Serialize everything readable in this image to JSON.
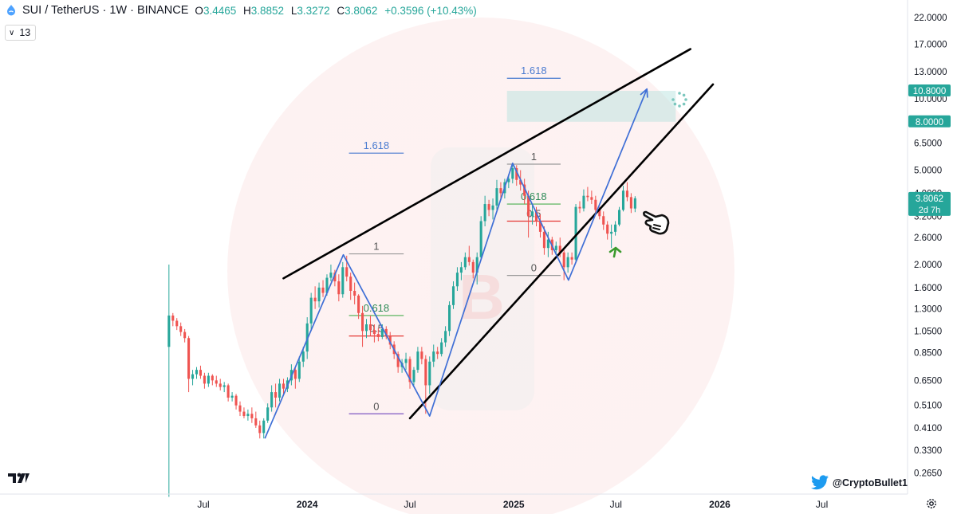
{
  "header": {
    "symbol": "SUI / TetherUS · 1W · BINANCE",
    "open_key": "O",
    "open": "3.4465",
    "high_key": "H",
    "high": "3.8852",
    "low_key": "L",
    "low": "3.3272",
    "close_key": "C",
    "close": "3.8062",
    "change": "+0.3596 (+10.43%)"
  },
  "indicator_badge": "13",
  "watermark_handle": "@CryptoBullet1",
  "colors": {
    "up": "#26a69a",
    "down": "#ef5350",
    "trend_lines": "#000000",
    "zigzag": "#3f6fd6",
    "fib_label": "#4a7bd0",
    "target_zone": "#b2dfdb",
    "price_badge": "#26a69a",
    "arrow_green": "#3a9a2d"
  },
  "chart_data": {
    "type": "candlestick",
    "scale": "log",
    "y_axis_ticks": [
      "22.0000",
      "17.0000",
      "13.0000",
      "10.0000",
      "6.5000",
      "5.0000",
      "4.0000",
      "3.2000",
      "2.6000",
      "2.0000",
      "1.6000",
      "1.3000",
      "1.0500",
      "0.8500",
      "0.6500",
      "0.5100",
      "0.4100",
      "0.3300",
      "0.2650"
    ],
    "x_axis_labels": [
      "Jul",
      "2024",
      "Jul",
      "2025",
      "Jul",
      "2026",
      "Jul"
    ],
    "price_badges": [
      {
        "label": "10.8000",
        "value": 10.8
      },
      {
        "label": "8.0000",
        "value": 8.0
      },
      {
        "label": "3.8062",
        "value": 3.8062,
        "sub": "2d 7h"
      }
    ],
    "target_zone": {
      "from_date": "2024-12-20",
      "to_date": "2025-10-15",
      "low": 8.0,
      "high": 10.8
    },
    "fib_levels": [
      {
        "label": "1",
        "value": 2.22,
        "from": "2024-03-15",
        "to": "2024-06-20",
        "style": "grey"
      },
      {
        "label": "0.618",
        "value": 1.22,
        "from": "2024-03-15",
        "to": "2024-06-20",
        "style": "green"
      },
      {
        "label": "0.5",
        "value": 1.0,
        "from": "2024-03-15",
        "to": "2024-06-20",
        "style": "red"
      },
      {
        "label": "0",
        "value": 0.47,
        "from": "2024-03-15",
        "to": "2024-06-20",
        "style": "purple"
      },
      {
        "label": "1.618",
        "value": 5.9,
        "from": "2024-03-15",
        "to": "2024-06-20",
        "style": "blue"
      },
      {
        "label": "1",
        "value": 5.3,
        "from": "2024-12-20",
        "to": "2025-03-25",
        "style": "grey"
      },
      {
        "label": "0.618",
        "value": 3.6,
        "from": "2024-12-20",
        "to": "2025-03-25",
        "style": "green"
      },
      {
        "label": "0.5",
        "value": 3.05,
        "from": "2024-12-20",
        "to": "2025-03-25",
        "style": "red"
      },
      {
        "label": "0",
        "value": 1.8,
        "from": "2024-12-20",
        "to": "2025-03-25",
        "style": "grey"
      },
      {
        "label": "1.618",
        "value": 12.2,
        "from": "2024-12-20",
        "to": "2025-03-25",
        "style": "blue"
      }
    ],
    "trend_lines": [
      {
        "from": [
          "2023-11-20",
          1.75
        ],
        "to": [
          "2025-11-10",
          16.2
        ]
      },
      {
        "from": [
          "2024-07-01",
          0.45
        ],
        "to": [
          "2025-12-20",
          11.5
        ]
      }
    ],
    "zigzag": [
      [
        "2023-10-18",
        0.37
      ],
      [
        "2024-03-05",
        2.2
      ],
      [
        "2024-08-05",
        0.46
      ],
      [
        "2024-12-30",
        5.35
      ],
      [
        "2025-04-08",
        1.72
      ],
      [
        "2025-08-25",
        11.0
      ]
    ],
    "candles": [
      {
        "date": "2023-05-01",
        "o": 0.9,
        "h": 2.0,
        "l": 0.21,
        "c": 1.22
      },
      {
        "date": "2023-05-08",
        "o": 1.22,
        "h": 1.25,
        "l": 1.1,
        "c": 1.16
      },
      {
        "date": "2023-05-15",
        "o": 1.16,
        "h": 1.19,
        "l": 1.06,
        "c": 1.1
      },
      {
        "date": "2023-05-22",
        "o": 1.1,
        "h": 1.14,
        "l": 1.0,
        "c": 1.04
      },
      {
        "date": "2023-05-29",
        "o": 1.04,
        "h": 1.07,
        "l": 0.94,
        "c": 0.98
      },
      {
        "date": "2023-06-05",
        "o": 0.98,
        "h": 1.0,
        "l": 0.58,
        "c": 0.66
      },
      {
        "date": "2023-06-12",
        "o": 0.66,
        "h": 0.72,
        "l": 0.62,
        "c": 0.69
      },
      {
        "date": "2023-06-19",
        "o": 0.69,
        "h": 0.74,
        "l": 0.66,
        "c": 0.72
      },
      {
        "date": "2023-06-26",
        "o": 0.72,
        "h": 0.75,
        "l": 0.66,
        "c": 0.68
      },
      {
        "date": "2023-07-03",
        "o": 0.68,
        "h": 0.7,
        "l": 0.6,
        "c": 0.63
      },
      {
        "date": "2023-07-10",
        "o": 0.63,
        "h": 0.7,
        "l": 0.61,
        "c": 0.68
      },
      {
        "date": "2023-07-17",
        "o": 0.68,
        "h": 0.69,
        "l": 0.62,
        "c": 0.65
      },
      {
        "date": "2023-07-24",
        "o": 0.65,
        "h": 0.68,
        "l": 0.61,
        "c": 0.63
      },
      {
        "date": "2023-07-31",
        "o": 0.63,
        "h": 0.66,
        "l": 0.59,
        "c": 0.61
      },
      {
        "date": "2023-08-07",
        "o": 0.61,
        "h": 0.64,
        "l": 0.58,
        "c": 0.62
      },
      {
        "date": "2023-08-14",
        "o": 0.62,
        "h": 0.63,
        "l": 0.53,
        "c": 0.55
      },
      {
        "date": "2023-08-21",
        "o": 0.55,
        "h": 0.58,
        "l": 0.53,
        "c": 0.56
      },
      {
        "date": "2023-08-28",
        "o": 0.56,
        "h": 0.57,
        "l": 0.49,
        "c": 0.51
      },
      {
        "date": "2023-09-04",
        "o": 0.51,
        "h": 0.53,
        "l": 0.46,
        "c": 0.48
      },
      {
        "date": "2023-09-11",
        "o": 0.48,
        "h": 0.5,
        "l": 0.45,
        "c": 0.46
      },
      {
        "date": "2023-09-18",
        "o": 0.46,
        "h": 0.49,
        "l": 0.44,
        "c": 0.47
      },
      {
        "date": "2023-09-25",
        "o": 0.47,
        "h": 0.5,
        "l": 0.43,
        "c": 0.45
      },
      {
        "date": "2023-10-02",
        "o": 0.45,
        "h": 0.48,
        "l": 0.41,
        "c": 0.42
      },
      {
        "date": "2023-10-09",
        "o": 0.42,
        "h": 0.44,
        "l": 0.37,
        "c": 0.39
      },
      {
        "date": "2023-10-16",
        "o": 0.39,
        "h": 0.45,
        "l": 0.37,
        "c": 0.44
      },
      {
        "date": "2023-10-23",
        "o": 0.44,
        "h": 0.52,
        "l": 0.43,
        "c": 0.5
      },
      {
        "date": "2023-10-30",
        "o": 0.5,
        "h": 0.62,
        "l": 0.48,
        "c": 0.58
      },
      {
        "date": "2023-11-06",
        "o": 0.58,
        "h": 0.63,
        "l": 0.5,
        "c": 0.55
      },
      {
        "date": "2023-11-13",
        "o": 0.55,
        "h": 0.66,
        "l": 0.53,
        "c": 0.63
      },
      {
        "date": "2023-11-20",
        "o": 0.63,
        "h": 0.66,
        "l": 0.56,
        "c": 0.6
      },
      {
        "date": "2023-11-27",
        "o": 0.6,
        "h": 0.67,
        "l": 0.58,
        "c": 0.65
      },
      {
        "date": "2023-12-04",
        "o": 0.65,
        "h": 0.76,
        "l": 0.62,
        "c": 0.72
      },
      {
        "date": "2023-12-11",
        "o": 0.72,
        "h": 0.74,
        "l": 0.6,
        "c": 0.66
      },
      {
        "date": "2023-12-18",
        "o": 0.66,
        "h": 0.82,
        "l": 0.64,
        "c": 0.78
      },
      {
        "date": "2023-12-25",
        "o": 0.78,
        "h": 0.9,
        "l": 0.74,
        "c": 0.86
      },
      {
        "date": "2024-01-01",
        "o": 0.86,
        "h": 1.2,
        "l": 0.8,
        "c": 1.13
      },
      {
        "date": "2024-01-08",
        "o": 1.13,
        "h": 1.52,
        "l": 1.05,
        "c": 1.45
      },
      {
        "date": "2024-01-15",
        "o": 1.45,
        "h": 1.62,
        "l": 1.3,
        "c": 1.4
      },
      {
        "date": "2024-01-22",
        "o": 1.4,
        "h": 1.68,
        "l": 1.32,
        "c": 1.6
      },
      {
        "date": "2024-01-29",
        "o": 1.6,
        "h": 1.72,
        "l": 1.46,
        "c": 1.52
      },
      {
        "date": "2024-02-05",
        "o": 1.52,
        "h": 1.82,
        "l": 1.48,
        "c": 1.76
      },
      {
        "date": "2024-02-12",
        "o": 1.76,
        "h": 2.0,
        "l": 1.7,
        "c": 1.85
      },
      {
        "date": "2024-02-19",
        "o": 1.85,
        "h": 1.9,
        "l": 1.62,
        "c": 1.7
      },
      {
        "date": "2024-02-26",
        "o": 1.7,
        "h": 1.82,
        "l": 1.4,
        "c": 1.5
      },
      {
        "date": "2024-03-04",
        "o": 1.5,
        "h": 2.05,
        "l": 1.45,
        "c": 1.95
      },
      {
        "date": "2024-03-11",
        "o": 1.95,
        "h": 2.18,
        "l": 1.7,
        "c": 1.78
      },
      {
        "date": "2024-03-18",
        "o": 1.78,
        "h": 1.85,
        "l": 1.42,
        "c": 1.55
      },
      {
        "date": "2024-03-25",
        "o": 1.55,
        "h": 1.68,
        "l": 1.36,
        "c": 1.48
      },
      {
        "date": "2024-04-01",
        "o": 1.48,
        "h": 1.5,
        "l": 1.18,
        "c": 1.25
      },
      {
        "date": "2024-04-08",
        "o": 1.25,
        "h": 1.34,
        "l": 0.9,
        "c": 1.05
      },
      {
        "date": "2024-04-15",
        "o": 1.05,
        "h": 1.18,
        "l": 0.98,
        "c": 1.12
      },
      {
        "date": "2024-04-22",
        "o": 1.12,
        "h": 1.22,
        "l": 1.0,
        "c": 1.06
      },
      {
        "date": "2024-04-29",
        "o": 1.06,
        "h": 1.12,
        "l": 0.94,
        "c": 1.02
      },
      {
        "date": "2024-05-06",
        "o": 1.02,
        "h": 1.08,
        "l": 0.95,
        "c": 0.99
      },
      {
        "date": "2024-05-13",
        "o": 0.99,
        "h": 1.12,
        "l": 0.97,
        "c": 1.07
      },
      {
        "date": "2024-05-20",
        "o": 1.07,
        "h": 1.1,
        "l": 0.97,
        "c": 1.0
      },
      {
        "date": "2024-05-27",
        "o": 1.0,
        "h": 1.04,
        "l": 0.88,
        "c": 0.92
      },
      {
        "date": "2024-06-03",
        "o": 0.92,
        "h": 0.95,
        "l": 0.8,
        "c": 0.84
      },
      {
        "date": "2024-06-10",
        "o": 0.84,
        "h": 0.86,
        "l": 0.7,
        "c": 0.74
      },
      {
        "date": "2024-06-17",
        "o": 0.74,
        "h": 0.8,
        "l": 0.7,
        "c": 0.77
      },
      {
        "date": "2024-06-24",
        "o": 0.77,
        "h": 0.85,
        "l": 0.72,
        "c": 0.8
      },
      {
        "date": "2024-07-01",
        "o": 0.8,
        "h": 0.82,
        "l": 0.6,
        "c": 0.64
      },
      {
        "date": "2024-07-08",
        "o": 0.64,
        "h": 0.74,
        "l": 0.62,
        "c": 0.72
      },
      {
        "date": "2024-07-15",
        "o": 0.72,
        "h": 0.9,
        "l": 0.7,
        "c": 0.86
      },
      {
        "date": "2024-07-22",
        "o": 0.86,
        "h": 0.9,
        "l": 0.76,
        "c": 0.8
      },
      {
        "date": "2024-07-29",
        "o": 0.8,
        "h": 0.83,
        "l": 0.47,
        "c": 0.62
      },
      {
        "date": "2024-08-05",
        "o": 0.62,
        "h": 0.82,
        "l": 0.57,
        "c": 0.78
      },
      {
        "date": "2024-08-12",
        "o": 0.78,
        "h": 0.92,
        "l": 0.74,
        "c": 0.86
      },
      {
        "date": "2024-08-19",
        "o": 0.86,
        "h": 0.9,
        "l": 0.8,
        "c": 0.84
      },
      {
        "date": "2024-08-26",
        "o": 0.84,
        "h": 0.98,
        "l": 0.82,
        "c": 0.94
      },
      {
        "date": "2024-09-02",
        "o": 0.94,
        "h": 1.1,
        "l": 0.9,
        "c": 1.05
      },
      {
        "date": "2024-09-09",
        "o": 1.05,
        "h": 1.4,
        "l": 1.0,
        "c": 1.35
      },
      {
        "date": "2024-09-16",
        "o": 1.35,
        "h": 1.7,
        "l": 1.3,
        "c": 1.62
      },
      {
        "date": "2024-09-23",
        "o": 1.62,
        "h": 1.95,
        "l": 1.55,
        "c": 1.85
      },
      {
        "date": "2024-09-30",
        "o": 1.85,
        "h": 2.05,
        "l": 1.72,
        "c": 1.95
      },
      {
        "date": "2024-10-07",
        "o": 1.95,
        "h": 2.25,
        "l": 1.9,
        "c": 2.15
      },
      {
        "date": "2024-10-14",
        "o": 2.15,
        "h": 2.4,
        "l": 1.98,
        "c": 2.05
      },
      {
        "date": "2024-10-21",
        "o": 2.05,
        "h": 2.1,
        "l": 1.75,
        "c": 1.85
      },
      {
        "date": "2024-10-28",
        "o": 1.85,
        "h": 2.25,
        "l": 1.65,
        "c": 2.15
      },
      {
        "date": "2024-11-04",
        "o": 2.15,
        "h": 3.2,
        "l": 2.1,
        "c": 3.05
      },
      {
        "date": "2024-11-11",
        "o": 3.05,
        "h": 3.9,
        "l": 2.9,
        "c": 3.6
      },
      {
        "date": "2024-11-18",
        "o": 3.6,
        "h": 3.75,
        "l": 3.2,
        "c": 3.4
      },
      {
        "date": "2024-11-25",
        "o": 3.4,
        "h": 3.8,
        "l": 3.1,
        "c": 3.55
      },
      {
        "date": "2024-12-02",
        "o": 3.55,
        "h": 4.55,
        "l": 3.4,
        "c": 4.2
      },
      {
        "date": "2024-12-09",
        "o": 4.2,
        "h": 4.45,
        "l": 3.8,
        "c": 4.0
      },
      {
        "date": "2024-12-16",
        "o": 4.0,
        "h": 4.6,
        "l": 3.8,
        "c": 4.45
      },
      {
        "date": "2024-12-23",
        "o": 4.45,
        "h": 4.8,
        "l": 4.2,
        "c": 4.6
      },
      {
        "date": "2024-12-30",
        "o": 4.6,
        "h": 5.35,
        "l": 4.4,
        "c": 5.1
      },
      {
        "date": "2025-01-06",
        "o": 5.1,
        "h": 5.25,
        "l": 4.3,
        "c": 4.55
      },
      {
        "date": "2025-01-13",
        "o": 4.55,
        "h": 5.0,
        "l": 4.1,
        "c": 4.35
      },
      {
        "date": "2025-01-20",
        "o": 4.35,
        "h": 4.6,
        "l": 3.6,
        "c": 3.9
      },
      {
        "date": "2025-01-27",
        "o": 3.9,
        "h": 4.1,
        "l": 2.6,
        "c": 3.2
      },
      {
        "date": "2025-02-03",
        "o": 3.2,
        "h": 3.55,
        "l": 2.95,
        "c": 3.35
      },
      {
        "date": "2025-02-10",
        "o": 3.35,
        "h": 3.5,
        "l": 2.9,
        "c": 3.05
      },
      {
        "date": "2025-02-17",
        "o": 3.05,
        "h": 3.25,
        "l": 2.6,
        "c": 2.75
      },
      {
        "date": "2025-02-24",
        "o": 2.75,
        "h": 2.9,
        "l": 2.2,
        "c": 2.35
      },
      {
        "date": "2025-03-03",
        "o": 2.35,
        "h": 2.75,
        "l": 2.15,
        "c": 2.55
      },
      {
        "date": "2025-03-10",
        "o": 2.55,
        "h": 2.62,
        "l": 2.2,
        "c": 2.3
      },
      {
        "date": "2025-03-17",
        "o": 2.3,
        "h": 2.5,
        "l": 2.2,
        "c": 2.4
      },
      {
        "date": "2025-03-24",
        "o": 2.4,
        "h": 2.6,
        "l": 2.15,
        "c": 2.25
      },
      {
        "date": "2025-03-31",
        "o": 2.25,
        "h": 2.3,
        "l": 1.72,
        "c": 1.95
      },
      {
        "date": "2025-04-07",
        "o": 1.95,
        "h": 2.25,
        "l": 1.85,
        "c": 2.15
      },
      {
        "date": "2025-04-14",
        "o": 2.15,
        "h": 2.25,
        "l": 2.0,
        "c": 2.1
      },
      {
        "date": "2025-04-21",
        "o": 2.1,
        "h": 3.6,
        "l": 2.05,
        "c": 3.5
      },
      {
        "date": "2025-04-28",
        "o": 3.5,
        "h": 3.7,
        "l": 3.3,
        "c": 3.45
      },
      {
        "date": "2025-05-05",
        "o": 3.45,
        "h": 4.15,
        "l": 3.35,
        "c": 3.9
      },
      {
        "date": "2025-05-12",
        "o": 3.9,
        "h": 4.25,
        "l": 3.7,
        "c": 3.85
      },
      {
        "date": "2025-05-19",
        "o": 3.85,
        "h": 4.1,
        "l": 3.6,
        "c": 3.75
      },
      {
        "date": "2025-05-26",
        "o": 3.75,
        "h": 3.9,
        "l": 3.25,
        "c": 3.4
      },
      {
        "date": "2025-06-02",
        "o": 3.4,
        "h": 3.5,
        "l": 3.1,
        "c": 3.2
      },
      {
        "date": "2025-06-09",
        "o": 3.2,
        "h": 3.35,
        "l": 2.8,
        "c": 2.95
      },
      {
        "date": "2025-06-16",
        "o": 2.95,
        "h": 3.05,
        "l": 2.55,
        "c": 2.7
      },
      {
        "date": "2025-06-23",
        "o": 2.7,
        "h": 2.95,
        "l": 2.35,
        "c": 2.75
      },
      {
        "date": "2025-06-30",
        "o": 2.75,
        "h": 3.05,
        "l": 2.65,
        "c": 2.95
      },
      {
        "date": "2025-07-07",
        "o": 2.95,
        "h": 3.5,
        "l": 2.9,
        "c": 3.4
      },
      {
        "date": "2025-07-14",
        "o": 3.4,
        "h": 4.3,
        "l": 3.35,
        "c": 4.1
      },
      {
        "date": "2025-07-21",
        "o": 4.1,
        "h": 4.45,
        "l": 3.7,
        "c": 3.85
      },
      {
        "date": "2025-07-28",
        "o": 3.85,
        "h": 4.0,
        "l": 3.3,
        "c": 3.45
      },
      {
        "date": "2025-08-04",
        "o": 3.4465,
        "h": 3.8852,
        "l": 3.3272,
        "c": 3.8062
      }
    ]
  }
}
